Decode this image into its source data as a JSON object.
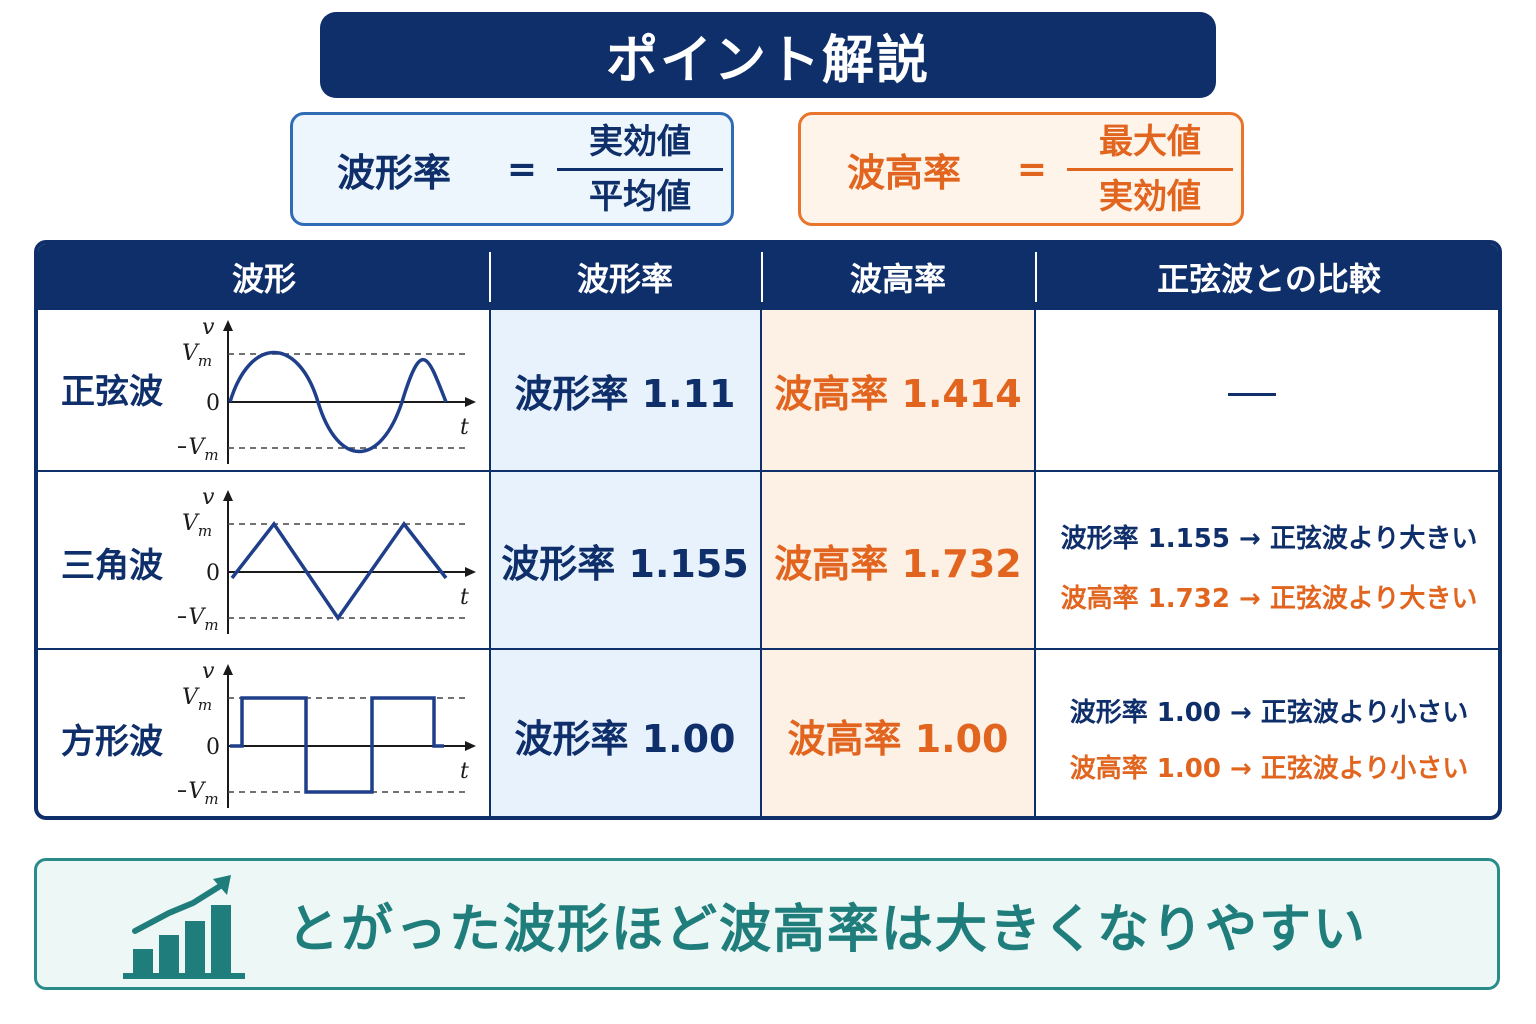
{
  "title": "ポイント解説",
  "formulas": [
    {
      "name": "波形率",
      "eq": "=",
      "numerator": "実効値",
      "denominator": "平均値"
    },
    {
      "name": "波高率",
      "eq": "=",
      "numerator": "最大値",
      "denominator": "実効値"
    }
  ],
  "table": {
    "headers": [
      "波形",
      "波形率",
      "波高率",
      "正弦波との比較"
    ],
    "rows": [
      {
        "name": "正弦波",
        "form_factor": "波形率 1.11",
        "crest_factor": "波高率 1.414",
        "comparison": "—",
        "comp_form": "",
        "comp_crest": ""
      },
      {
        "name": "三角波",
        "form_factor": "波形率 1.155",
        "crest_factor": "波高率 1.732",
        "comparison": "",
        "comp_form": "波形率 1.155 → 正弦波より大きい",
        "comp_crest": "波高率 1.732 → 正弦波より大きい"
      },
      {
        "name": "方形波",
        "form_factor": "波形率 1.00",
        "crest_factor": "波高率 1.00",
        "comparison": "",
        "comp_form": "波形率 1.00 → 正弦波より小さい",
        "comp_crest": "波高率 1.00 → 正弦波より小さい"
      }
    ]
  },
  "graph_labels": {
    "v": "v",
    "vm": "V",
    "vm_sub": "m",
    "neg_vm": "−V",
    "zero": "0",
    "t": "t"
  },
  "summary": "とがった波形ほど波高率は大きくなりやすい",
  "icons": {
    "summary": "bar-chart-trend-icon"
  },
  "colors": {
    "navy": "#0f2f6b",
    "orange": "#e2651f",
    "teal": "#1f7d7b"
  }
}
